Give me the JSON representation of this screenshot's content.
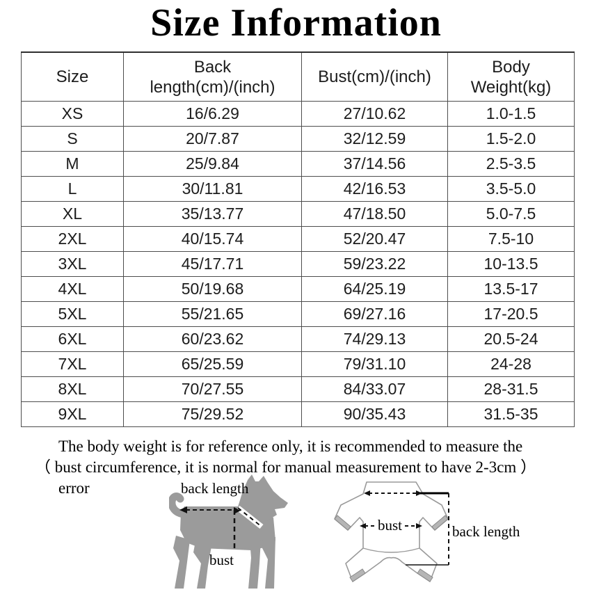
{
  "title": "Size Information",
  "table": {
    "headers": [
      {
        "lines": [
          "Size"
        ]
      },
      {
        "lines": [
          "Back",
          "length(cm)/(inch)"
        ]
      },
      {
        "lines": [
          "Bust(cm)/(inch)"
        ]
      },
      {
        "lines": [
          "Body",
          "Weight(kg)"
        ]
      }
    ],
    "rows": [
      [
        "XS",
        "16/6.29",
        "27/10.62",
        "1.0-1.5"
      ],
      [
        "S",
        "20/7.87",
        "32/12.59",
        "1.5-2.0"
      ],
      [
        "M",
        "25/9.84",
        "37/14.56",
        "2.5-3.5"
      ],
      [
        "L",
        "30/11.81",
        "42/16.53",
        "3.5-5.0"
      ],
      [
        "XL",
        "35/13.77",
        "47/18.50",
        "5.0-7.5"
      ],
      [
        "2XL",
        "40/15.74",
        "52/20.47",
        "7.5-10"
      ],
      [
        "3XL",
        "45/17.71",
        "59/23.22",
        "10-13.5"
      ],
      [
        "4XL",
        "50/19.68",
        "64/25.19",
        "13.5-17"
      ],
      [
        "5XL",
        "55/21.65",
        "69/27.16",
        "17-20.5"
      ],
      [
        "6XL",
        "60/23.62",
        "74/29.13",
        "20.5-24"
      ],
      [
        "7XL",
        "65/25.59",
        "79/31.10",
        "24-28"
      ],
      [
        "8XL",
        "70/27.55",
        "84/33.07",
        "28-31.5"
      ],
      [
        "9XL",
        "75/29.52",
        "90/35.43",
        "31.5-35"
      ]
    ]
  },
  "note": {
    "line1": "The body weight is for reference only, it is recommended to measure the",
    "line2": "（ bust circumference, it is normal for manual measurement to have 2-3cm ）",
    "line3": "error"
  },
  "diagrams": {
    "dog": {
      "back_length_label": "back length",
      "bust_label": "bust"
    },
    "garment": {
      "bust_label": "bust",
      "back_length_label": "back length"
    }
  },
  "colors": {
    "dog_silhouette": "#9b9b9b",
    "garment_outline": "#9a9a9a",
    "cuff_fill": "#b5b5b5",
    "table_border": "#4d4d4d",
    "text": "#000000"
  }
}
